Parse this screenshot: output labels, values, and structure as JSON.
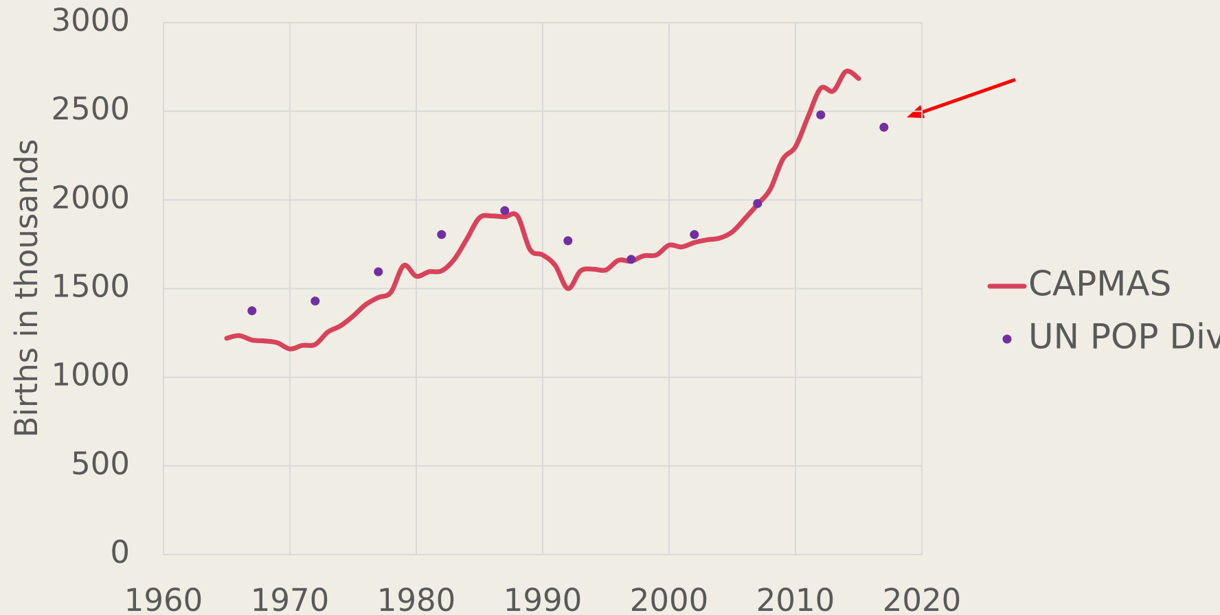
{
  "chart_data": {
    "type": "line",
    "y_label": "Births in thousands",
    "xlim": [
      1960,
      2020
    ],
    "xticks": [
      1960,
      1970,
      1980,
      1990,
      2000,
      2010,
      2020
    ],
    "ylim": [
      0,
      3000
    ],
    "yticks": [
      0,
      500,
      1000,
      1500,
      2000,
      2500,
      3000
    ],
    "grid": true,
    "legend": "right",
    "series": [
      {
        "name": "CAPMAS",
        "color": "#d6435a",
        "mode": "line",
        "x": [
          1965,
          1966,
          1967,
          1968,
          1969,
          1970,
          1971,
          1972,
          1973,
          1974,
          1975,
          1976,
          1977,
          1978,
          1979,
          1980,
          1981,
          1982,
          1983,
          1984,
          1985,
          1986,
          1987,
          1988,
          1989,
          1990,
          1991,
          1992,
          1993,
          1994,
          1995,
          1996,
          1997,
          1998,
          1999,
          2000,
          2001,
          2002,
          2003,
          2004,
          2005,
          2006,
          2007,
          2008,
          2009,
          2010,
          2011,
          2012,
          2013,
          2014,
          2015
        ],
        "values": [
          1220,
          1235,
          1210,
          1205,
          1195,
          1160,
          1180,
          1185,
          1255,
          1290,
          1345,
          1410,
          1450,
          1480,
          1630,
          1570,
          1595,
          1600,
          1665,
          1780,
          1900,
          1910,
          1905,
          1910,
          1720,
          1690,
          1630,
          1500,
          1600,
          1610,
          1605,
          1660,
          1655,
          1685,
          1690,
          1745,
          1735,
          1760,
          1775,
          1785,
          1820,
          1895,
          1975,
          2060,
          2230,
          2300,
          2470,
          2630,
          2615,
          2725,
          2685
        ]
      },
      {
        "name": "UN POP Div",
        "color": "#7030a0",
        "mode": "markers",
        "x": [
          1967,
          1972,
          1977,
          1982,
          1987,
          1992,
          1997,
          2002,
          2007,
          2012,
          2017
        ],
        "values": [
          1375,
          1430,
          1595,
          1805,
          1940,
          1770,
          1665,
          1805,
          1980,
          2480,
          2410
        ]
      }
    ]
  }
}
